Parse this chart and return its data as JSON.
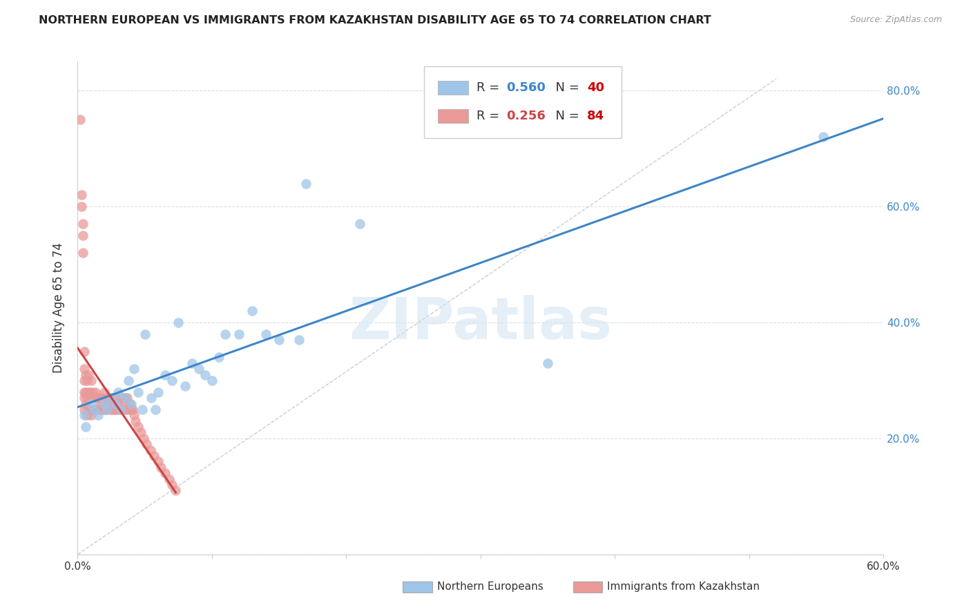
{
  "title": "NORTHERN EUROPEAN VS IMMIGRANTS FROM KAZAKHSTAN DISABILITY AGE 65 TO 74 CORRELATION CHART",
  "source": "Source: ZipAtlas.com",
  "ylabel": "Disability Age 65 to 74",
  "xlim": [
    0,
    0.6
  ],
  "ylim": [
    0,
    0.85
  ],
  "legend1_r": "0.560",
  "legend1_n": "40",
  "legend2_r": "0.256",
  "legend2_n": "84",
  "blue_color": "#9fc5e8",
  "blue_edge_color": "#6fa8dc",
  "pink_color": "#ea9999",
  "pink_edge_color": "#e06666",
  "blue_line_color": "#3d85c8",
  "pink_line_color": "#cc4444",
  "watermark": "ZIPatlas",
  "blue_x": [
    0.005,
    0.006,
    0.01,
    0.012,
    0.015,
    0.02,
    0.022,
    0.025,
    0.028,
    0.03,
    0.032,
    0.035,
    0.038,
    0.04,
    0.042,
    0.045,
    0.048,
    0.05,
    0.055,
    0.058,
    0.06,
    0.065,
    0.07,
    0.075,
    0.08,
    0.085,
    0.09,
    0.095,
    0.1,
    0.105,
    0.11,
    0.12,
    0.13,
    0.14,
    0.15,
    0.165,
    0.17,
    0.21,
    0.35,
    0.555
  ],
  "blue_y": [
    0.24,
    0.22,
    0.26,
    0.25,
    0.24,
    0.26,
    0.25,
    0.27,
    0.26,
    0.28,
    0.25,
    0.27,
    0.3,
    0.26,
    0.32,
    0.28,
    0.25,
    0.38,
    0.27,
    0.25,
    0.28,
    0.31,
    0.3,
    0.4,
    0.29,
    0.33,
    0.32,
    0.31,
    0.3,
    0.34,
    0.38,
    0.38,
    0.42,
    0.38,
    0.37,
    0.37,
    0.64,
    0.57,
    0.33,
    0.72
  ],
  "pink_x": [
    0.002,
    0.003,
    0.003,
    0.004,
    0.004,
    0.004,
    0.005,
    0.005,
    0.005,
    0.005,
    0.005,
    0.005,
    0.006,
    0.006,
    0.006,
    0.007,
    0.007,
    0.007,
    0.008,
    0.008,
    0.008,
    0.009,
    0.009,
    0.01,
    0.01,
    0.01,
    0.011,
    0.011,
    0.012,
    0.012,
    0.013,
    0.013,
    0.014,
    0.014,
    0.015,
    0.015,
    0.016,
    0.016,
    0.017,
    0.018,
    0.018,
    0.019,
    0.02,
    0.02,
    0.021,
    0.021,
    0.022,
    0.023,
    0.023,
    0.024,
    0.025,
    0.025,
    0.026,
    0.026,
    0.027,
    0.028,
    0.028,
    0.029,
    0.03,
    0.031,
    0.032,
    0.033,
    0.034,
    0.035,
    0.036,
    0.037,
    0.038,
    0.039,
    0.04,
    0.041,
    0.042,
    0.043,
    0.045,
    0.047,
    0.049,
    0.051,
    0.054,
    0.057,
    0.06,
    0.062,
    0.065,
    0.068,
    0.07,
    0.073
  ],
  "pink_y": [
    0.75,
    0.62,
    0.6,
    0.57,
    0.55,
    0.52,
    0.25,
    0.27,
    0.28,
    0.3,
    0.32,
    0.35,
    0.26,
    0.28,
    0.31,
    0.24,
    0.27,
    0.3,
    0.25,
    0.28,
    0.31,
    0.25,
    0.28,
    0.24,
    0.27,
    0.3,
    0.25,
    0.28,
    0.25,
    0.27,
    0.25,
    0.28,
    0.25,
    0.27,
    0.25,
    0.27,
    0.25,
    0.27,
    0.26,
    0.25,
    0.27,
    0.25,
    0.26,
    0.28,
    0.25,
    0.27,
    0.25,
    0.26,
    0.27,
    0.25,
    0.26,
    0.27,
    0.25,
    0.27,
    0.25,
    0.25,
    0.27,
    0.25,
    0.26,
    0.25,
    0.27,
    0.25,
    0.26,
    0.27,
    0.25,
    0.27,
    0.25,
    0.26,
    0.25,
    0.25,
    0.24,
    0.23,
    0.22,
    0.21,
    0.2,
    0.19,
    0.18,
    0.17,
    0.16,
    0.15,
    0.14,
    0.13,
    0.12,
    0.11
  ]
}
